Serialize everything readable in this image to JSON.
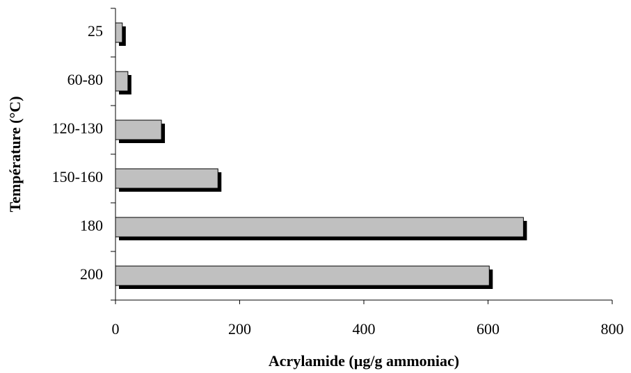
{
  "chart_data": {
    "type": "hbar",
    "xlabel": "Acrylamide (µg/g ammoniac)",
    "ylabel": "Température (°C)",
    "categories": [
      "25",
      "60-80",
      "120-130",
      "150-160",
      "180",
      "200"
    ],
    "values": [
      11,
      20,
      74,
      165,
      657,
      602
    ],
    "color": "#c0c0c0",
    "shadow_color": "#000000",
    "xlim": [
      0,
      800
    ],
    "xticks": [
      0,
      200,
      400,
      600,
      800
    ]
  }
}
